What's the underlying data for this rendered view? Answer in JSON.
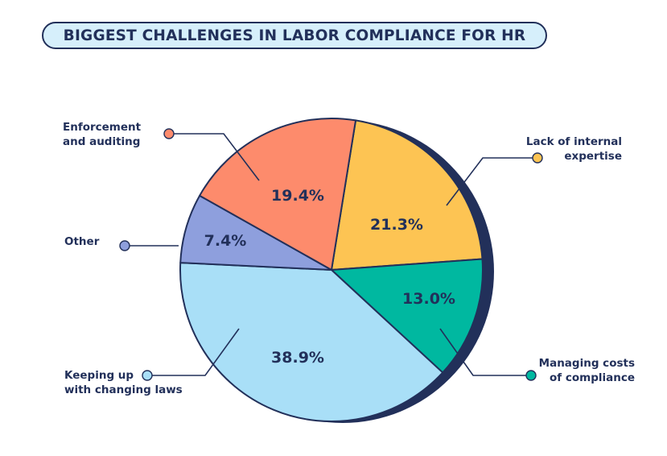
{
  "chart_data": {
    "type": "pie",
    "title": "BIGGEST CHALLENGES IN LABOR COMPLIANCE FOR HR",
    "categories": [
      "Lack of internal expertise",
      "Managing costs of compliance",
      "Keeping up with changing laws",
      "Other",
      "Enforcement and auditing"
    ],
    "label_lines": [
      [
        "Lack of internal",
        "expertise"
      ],
      [
        "Managing costs",
        "of compliance"
      ],
      [
        "Keeping up",
        "with changing laws"
      ],
      [
        "Other"
      ],
      [
        "Enforcement",
        "and auditing"
      ]
    ],
    "values": [
      21.3,
      13.0,
      38.9,
      7.4,
      19.4
    ],
    "data_labels": [
      "21.3%",
      "13.0%",
      "38.9%",
      "7.4%",
      "19.4%"
    ],
    "colors": [
      "#FDC453",
      "#00B8A0",
      "#A9DFF7",
      "#8E9FDD",
      "#FD8B6C"
    ],
    "outline_color": "#22305A",
    "legend": "callouts"
  }
}
